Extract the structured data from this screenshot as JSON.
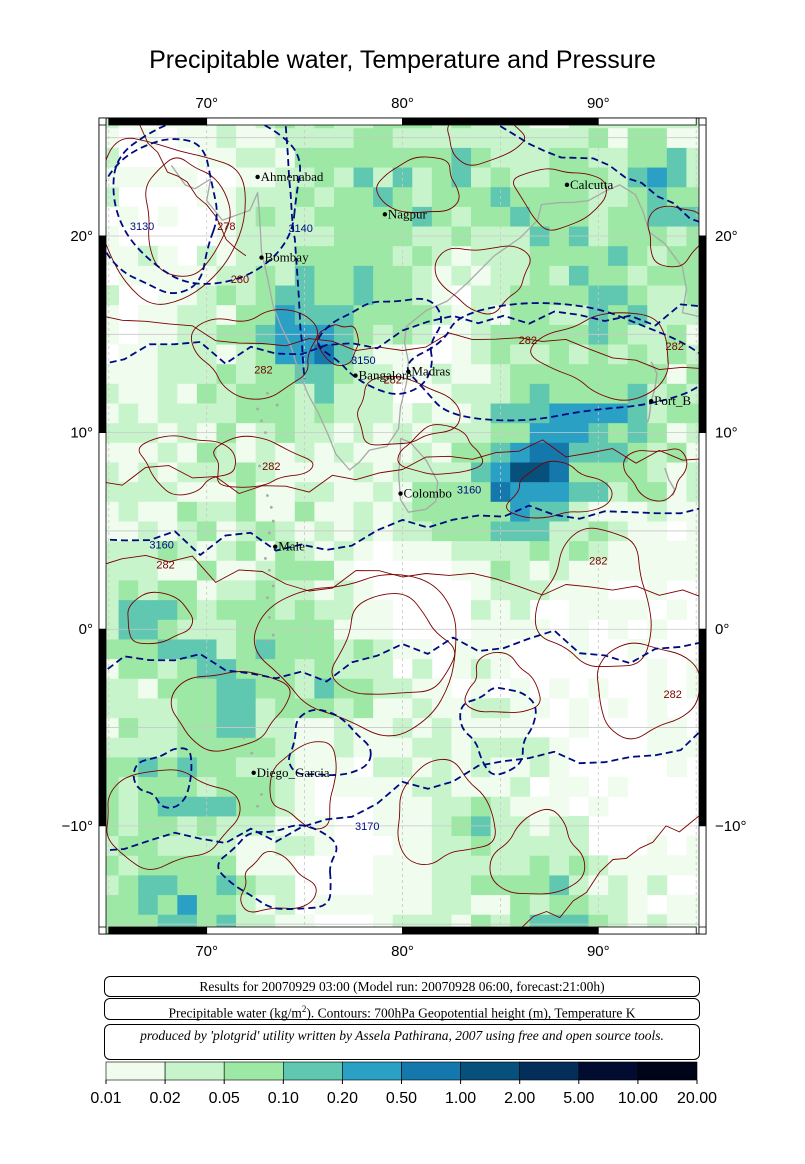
{
  "title": "Precipitable water, Temperature and Pressure",
  "map": {
    "lon_range": [
      64.5,
      95.5
    ],
    "lat_range": [
      -15.5,
      26
    ],
    "lon_ticks": [
      {
        "value": 70,
        "label": "70°"
      },
      {
        "value": 80,
        "label": "80°"
      },
      {
        "value": 90,
        "label": "90°"
      }
    ],
    "lat_ticks": [
      {
        "value": 20,
        "label": "20°"
      },
      {
        "value": 10,
        "label": "10°"
      },
      {
        "value": 0,
        "label": "0°"
      },
      {
        "value": -10,
        "label": "−10°"
      }
    ],
    "grid": true,
    "cities": [
      {
        "name": "Ahmenabad",
        "lon": 72.6,
        "lat": 23.0
      },
      {
        "name": "Nagpur",
        "lon": 79.1,
        "lat": 21.1
      },
      {
        "name": "Calcutta",
        "lon": 88.4,
        "lat": 22.6
      },
      {
        "name": "Bombay",
        "lon": 72.8,
        "lat": 18.9
      },
      {
        "name": "Bangalore",
        "lon": 77.6,
        "lat": 12.9
      },
      {
        "name": "Madras",
        "lon": 80.3,
        "lat": 13.1
      },
      {
        "name": "Port_B",
        "lon": 92.7,
        "lat": 11.6
      },
      {
        "name": "Colombo",
        "lon": 79.9,
        "lat": 6.9
      },
      {
        "name": "Male",
        "lon": 73.5,
        "lat": 4.2
      },
      {
        "name": "Diego_Garcia",
        "lon": 72.4,
        "lat": -7.3
      }
    ],
    "height_contour_labels": [
      {
        "text": "3130",
        "lon": 66.7,
        "lat": 20.5
      },
      {
        "text": "3140",
        "lon": 74.8,
        "lat": 20.4
      },
      {
        "text": "3150",
        "lon": 78.0,
        "lat": 13.7
      },
      {
        "text": "3160",
        "lon": 67.7,
        "lat": 4.3
      },
      {
        "text": "3160",
        "lon": 83.4,
        "lat": 7.1
      },
      {
        "text": "3170",
        "lon": 78.2,
        "lat": -10.0
      }
    ],
    "temperature_contour_labels": [
      {
        "text": "278",
        "lon": 71.0,
        "lat": 20.5
      },
      {
        "text": "280",
        "lon": 71.7,
        "lat": 17.8
      },
      {
        "text": "282",
        "lon": 72.9,
        "lat": 13.2
      },
      {
        "text": "282",
        "lon": 79.5,
        "lat": 12.7
      },
      {
        "text": "282",
        "lon": 86.4,
        "lat": 14.7
      },
      {
        "text": "282",
        "lon": 93.9,
        "lat": 14.4
      },
      {
        "text": "282",
        "lon": 73.3,
        "lat": 8.3
      },
      {
        "text": "282",
        "lon": 67.9,
        "lat": 3.3
      },
      {
        "text": "282",
        "lon": 90.0,
        "lat": 3.5
      },
      {
        "text": "282",
        "lon": 93.8,
        "lat": -3.3
      }
    ]
  },
  "info": {
    "line1": "Results for 20070929 03:00 (Model run: 20070928 06:00, forecast:21:00h)",
    "line2_prefix": "Precipitable water (kg/m",
    "line2_sup": "2",
    "line2_suffix": ").  Contours: 700hPa Geopotential height (m), Temperature K",
    "line3": "produced by 'plotgrid' utility written by Assela Pathirana, 2007 using free and open source tools."
  },
  "colorbar": {
    "labels": [
      "0.01",
      "0.02",
      "0.05",
      "0.10",
      "0.20",
      "0.50",
      "1.00",
      "2.00",
      "5.00",
      "10.00",
      "20.00"
    ],
    "colors": [
      "#effcee",
      "#c8f4cc",
      "#9ce8a4",
      "#60c8b0",
      "#2aa0c4",
      "#1478ac",
      "#08507c",
      "#032e5a",
      "#010c30",
      "#000418"
    ]
  },
  "colors": {
    "height_contour": "#000a80",
    "temperature_contour": "#7a0000",
    "coast": "#a8a8a8",
    "grid": "#c8c8c8"
  }
}
